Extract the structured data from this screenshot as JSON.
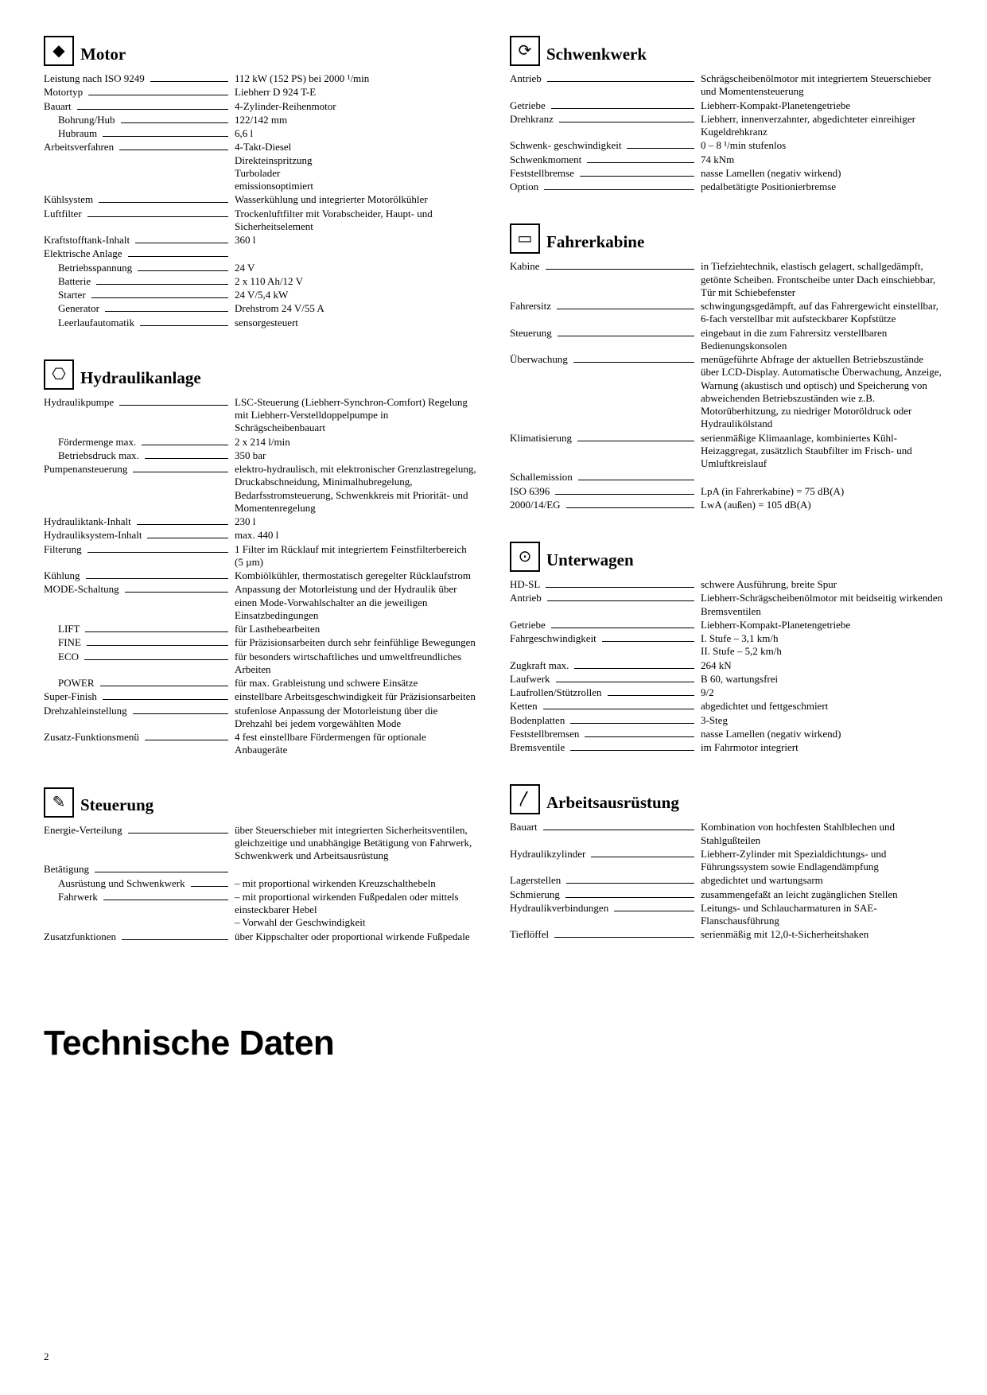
{
  "page_title": "Technische Daten",
  "page_number": "2",
  "sections": [
    {
      "id": "motor",
      "title": "Motor",
      "icon_glyph": "◆",
      "rows": [
        {
          "label": "Leistung nach ISO 9249",
          "value": "112 kW (152 PS) bei 2000 ¹/min"
        },
        {
          "label": "Motortyp",
          "value": "Liebherr D 924 T-E"
        },
        {
          "label": "Bauart",
          "value": "4-Zylinder-Reihenmotor"
        },
        {
          "label": "Bohrung/Hub",
          "value": "122/142 mm",
          "indent": 1
        },
        {
          "label": "Hubraum",
          "value": "6,6 l",
          "indent": 1
        },
        {
          "label": "Arbeitsverfahren",
          "value": "4-Takt-Diesel\nDirekteinspritzung\nTurbolader\nemissionsoptimiert"
        },
        {
          "label": "Kühlsystem",
          "value": "Wasserkühlung und integrierter Motorölkühler"
        },
        {
          "label": "Luftfilter",
          "value": "Trockenluftfilter mit Vorabscheider, Haupt- und Sicherheitselement"
        },
        {
          "label": "Kraftstofftank-Inhalt",
          "value": "360 l"
        },
        {
          "label": "Elektrische Anlage",
          "value": ""
        },
        {
          "label": "Betriebsspannung",
          "value": "24 V",
          "indent": 1
        },
        {
          "label": "Batterie",
          "value": "2 x 110 Ah/12 V",
          "indent": 1
        },
        {
          "label": "Starter",
          "value": "24 V/5,4 kW",
          "indent": 1
        },
        {
          "label": "Generator",
          "value": "Drehstrom 24 V/55 A",
          "indent": 1
        },
        {
          "label": "Leerlaufautomatik",
          "value": "sensorgesteuert",
          "indent": 1
        }
      ]
    },
    {
      "id": "hydraulikanlage",
      "title": "Hydraulikanlage",
      "icon_glyph": "⎔",
      "rows": [
        {
          "label": "Hydraulikpumpe",
          "value": "LSC-Steuerung (Liebherr-Synchron-Comfort) Regelung mit Liebherr-Verstelldoppelpumpe in Schrägscheibenbauart"
        },
        {
          "label": "Fördermenge max.",
          "value": "2 x 214 l/min",
          "indent": 1
        },
        {
          "label": "Betriebsdruck max.",
          "value": "350 bar",
          "indent": 1
        },
        {
          "label": "Pumpenansteuerung",
          "value": "elektro-hydraulisch, mit elektronischer Grenzlastregelung, Druckabschneidung, Minimalhubregelung, Bedarfsstromsteuerung, Schwenkkreis mit Priorität- und Momentenregelung"
        },
        {
          "label": "Hydrauliktank-Inhalt",
          "value": "230 l"
        },
        {
          "label": "Hydrauliksystem-Inhalt",
          "value": "max. 440 l"
        },
        {
          "label": "Filterung",
          "value": "1 Filter im Rücklauf mit integriertem Feinstfilterbereich (5 µm)"
        },
        {
          "label": "Kühlung",
          "value": "Kombiölkühler, thermostatisch geregelter Rücklaufstrom"
        },
        {
          "label": "MODE-Schaltung",
          "value": "Anpassung der Motorleistung und der Hydraulik über einen Mode-Vorwahlschalter an die jeweiligen Einsatzbedingungen"
        },
        {
          "label": "LIFT",
          "value": "für Lasthebearbeiten",
          "indent": 1
        },
        {
          "label": "FINE",
          "value": "für Präzisionsarbeiten durch sehr feinfühlige Bewegungen",
          "indent": 1
        },
        {
          "label": "ECO",
          "value": "für besonders wirtschaftliches und umweltfreundliches Arbeiten",
          "indent": 1
        },
        {
          "label": "POWER",
          "value": "für max. Grableistung und schwere Einsätze",
          "indent": 1
        },
        {
          "label": "Super-Finish",
          "value": "einstellbare Arbeitsgeschwindigkeit für Präzisionsarbeiten"
        },
        {
          "label": "Drehzahleinstellung",
          "value": "stufenlose Anpassung der Motorleistung über die Drehzahl bei jedem vorgewählten Mode"
        },
        {
          "label": "Zusatz-Funktionsmenü",
          "value": "4 fest einstellbare Fördermengen für optionale Anbaugeräte"
        }
      ]
    },
    {
      "id": "steuerung",
      "title": "Steuerung",
      "icon_glyph": "✎",
      "rows": [
        {
          "label": "Energie-Verteilung",
          "value": "über Steuerschieber mit integrierten Sicherheitsventilen, gleichzeitige und unabhängige Betätigung von Fahrwerk, Schwenkwerk und Arbeitsausrüstung"
        },
        {
          "label": "Betätigung",
          "value": ""
        },
        {
          "label": "Ausrüstung und Schwenkwerk",
          "value": "– mit proportional wirkenden Kreuzschalthebeln",
          "indent": 1
        },
        {
          "label": "Fahrwerk",
          "value": "– mit proportional wirkenden Fußpedalen oder mittels einsteckbarer Hebel\n– Vorwahl der Geschwindigkeit",
          "indent": 1
        },
        {
          "label": "Zusatzfunktionen",
          "value": "über Kippschalter oder proportional wirkende Fußpedale"
        }
      ]
    },
    {
      "id": "schwenkwerk",
      "title": "Schwenkwerk",
      "icon_glyph": "⟳",
      "rows": [
        {
          "label": "Antrieb",
          "value": "Schrägscheibenölmotor mit integriertem Steuerschieber und Momentensteuerung"
        },
        {
          "label": "Getriebe",
          "value": "Liebherr-Kompakt-Planetengetriebe"
        },
        {
          "label": "Drehkranz",
          "value": "Liebherr, innenverzahnter, abgedichteter einreihiger Kugeldrehkranz"
        },
        {
          "label": "Schwenk-\ngeschwindigkeit",
          "value": "0 – 8 ¹/min stufenlos"
        },
        {
          "label": "Schwenkmoment",
          "value": "74 kNm"
        },
        {
          "label": "Feststellbremse",
          "value": "nasse Lamellen (negativ wirkend)"
        },
        {
          "label": "Option",
          "value": "pedalbetätigte Positionierbremse"
        }
      ]
    },
    {
      "id": "fahrerkabine",
      "title": "Fahrerkabine",
      "icon_glyph": "▭",
      "rows": [
        {
          "label": "Kabine",
          "value": "in Tiefziehtechnik, elastisch gelagert, schallgedämpft, getönte Scheiben. Frontscheibe unter Dach einschiebbar, Tür mit Schiebefenster"
        },
        {
          "label": "Fahrersitz",
          "value": "schwingungsgedämpft, auf das Fahrergewicht einstellbar, 6-fach verstellbar mit aufsteckbarer Kopfstütze"
        },
        {
          "label": "Steuerung",
          "value": "eingebaut in die zum Fahrersitz verstellbaren Bedienungskonsolen"
        },
        {
          "label": "Überwachung",
          "value": "menügeführte Abfrage der aktuellen Betriebszustände über LCD-Display. Automatische Überwachung, Anzeige, Warnung (akustisch und optisch) und Speicherung von abweichenden Betriebszuständen wie z.B. Motorüberhitzung, zu niedriger Motoröldruck oder Hydraulikölstand"
        },
        {
          "label": "Klimatisierung",
          "value": "serienmäßige Klimaanlage, kombiniertes Kühl-Heizaggregat, zusätzlich Staubfilter im Frisch- und Umluftkreislauf"
        },
        {
          "label": "Schallemission",
          "value": ""
        },
        {
          "label": "ISO 6396",
          "value": "LpA (in Fahrerkabine) =  75 dB(A)"
        },
        {
          "label": "2000/14/EG",
          "value": "LwA (außen)             = 105 dB(A)"
        }
      ]
    },
    {
      "id": "unterwagen",
      "title": "Unterwagen",
      "icon_glyph": "⊙",
      "rows": [
        {
          "label": "HD-SL",
          "value": "schwere Ausführung, breite Spur"
        },
        {
          "label": "Antrieb",
          "value": "Liebherr-Schrägscheibenölmotor mit beidseitig wirkenden Bremsventilen"
        },
        {
          "label": "Getriebe",
          "value": "Liebherr-Kompakt-Planetengetriebe"
        },
        {
          "label": "Fahrgeschwindigkeit",
          "value": "I. Stufe – 3,1 km/h\nII. Stufe – 5,2 km/h"
        },
        {
          "label": "Zugkraft max.",
          "value": "264 kN"
        },
        {
          "label": "Laufwerk",
          "value": "B 60, wartungsfrei"
        },
        {
          "label": "Laufrollen/Stützrollen",
          "value": "9/2"
        },
        {
          "label": "Ketten",
          "value": "abgedichtet und fettgeschmiert"
        },
        {
          "label": "Bodenplatten",
          "value": "3-Steg"
        },
        {
          "label": "Feststellbremsen",
          "value": "nasse Lamellen (negativ wirkend)"
        },
        {
          "label": "Bremsventile",
          "value": "im Fahrmotor integriert"
        }
      ]
    },
    {
      "id": "arbeitsausruestung",
      "title": "Arbeitsausrüstung",
      "icon_glyph": "〳",
      "rows": [
        {
          "label": "Bauart",
          "value": "Kombination von hochfesten Stahlblechen und Stahlgußteilen"
        },
        {
          "label": "Hydraulikzylinder",
          "value": "Liebherr-Zylinder mit Spezialdichtungs- und Führungssystem sowie Endlagendämpfung"
        },
        {
          "label": "Lagerstellen",
          "value": "abgedichtet und wartungsarm"
        },
        {
          "label": "Schmierung",
          "value": "zusammengefaßt an leicht zugänglichen Stellen"
        },
        {
          "label": "Hydraulikverbindungen",
          "value": "Leitungs- und Schlaucharmaturen in SAE-Flanschausführung"
        },
        {
          "label": "Tieflöffel",
          "value": "serienmäßig mit 12,0-t-Sicherheitshaken"
        }
      ]
    }
  ],
  "layout": {
    "left": [
      "motor",
      "hydraulikanlage",
      "steuerung"
    ],
    "right": [
      "schwenkwerk",
      "fahrerkabine",
      "unterwagen",
      "arbeitsausruestung"
    ]
  }
}
